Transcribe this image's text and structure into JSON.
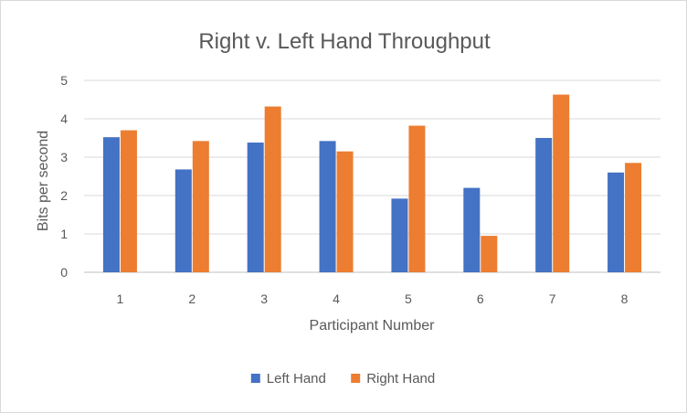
{
  "chart_data": {
    "type": "bar",
    "title": "Right v. Left Hand Throughput",
    "xlabel": "Participant Number",
    "ylabel": "Bits per second",
    "categories": [
      "1",
      "2",
      "3",
      "4",
      "5",
      "6",
      "7",
      "8"
    ],
    "series": [
      {
        "name": "Left Hand",
        "color": "#4472C4",
        "values": [
          3.52,
          2.68,
          3.38,
          3.42,
          1.92,
          2.2,
          3.5,
          2.6
        ]
      },
      {
        "name": "Right Hand",
        "color": "#ED7D31",
        "values": [
          3.7,
          3.42,
          4.32,
          3.15,
          3.82,
          0.95,
          4.63,
          2.85
        ]
      }
    ],
    "ylim": [
      0,
      5
    ],
    "yticks": [
      0,
      1,
      2,
      3,
      4,
      5
    ],
    "grid": true,
    "legend_position": "bottom"
  }
}
